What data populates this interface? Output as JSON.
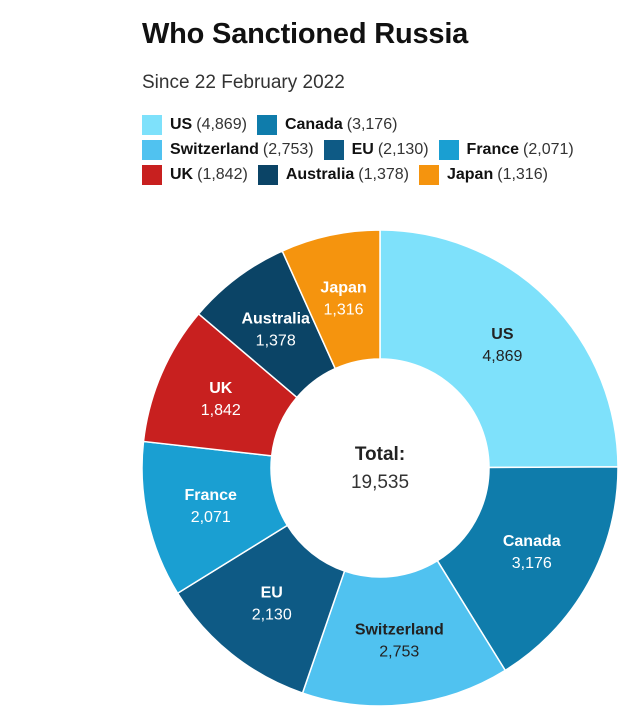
{
  "title": "Who Sanctioned Russia",
  "subtitle": "Since 22 February 2022",
  "chart_data": {
    "type": "pie",
    "donut": true,
    "title": "Who Sanctioned Russia",
    "subtitle": "Since 22 February 2022",
    "legend_placement": "top",
    "total_label": "Total:",
    "total_value": "19,535",
    "series": [
      {
        "name": "US",
        "value": 4869,
        "display": "4,869",
        "color": "#7ee1fb",
        "text_color": "#222222"
      },
      {
        "name": "Canada",
        "value": 3176,
        "display": "3,176",
        "color": "#0f7cab",
        "text_color": "#ffffff"
      },
      {
        "name": "Switzerland",
        "value": 2753,
        "display": "2,753",
        "color": "#50c2f0",
        "text_color": "#222222"
      },
      {
        "name": "EU",
        "value": 2130,
        "display": "2,130",
        "color": "#0e5a85",
        "text_color": "#ffffff"
      },
      {
        "name": "France",
        "value": 2071,
        "display": "2,071",
        "color": "#1a9fd2",
        "text_color": "#ffffff"
      },
      {
        "name": "UK",
        "value": 1842,
        "display": "1,842",
        "color": "#c8201f",
        "text_color": "#ffffff"
      },
      {
        "name": "Australia",
        "value": 1378,
        "display": "1,378",
        "color": "#0b4466",
        "text_color": "#ffffff"
      },
      {
        "name": "Japan",
        "value": 1316,
        "display": "1,316",
        "color": "#f5940e",
        "text_color": "#ffffff"
      }
    ],
    "legend_rows": [
      [
        "US",
        "Canada"
      ],
      [
        "Switzerland",
        "EU",
        "France"
      ],
      [
        "UK",
        "Australia",
        "Japan"
      ]
    ]
  }
}
